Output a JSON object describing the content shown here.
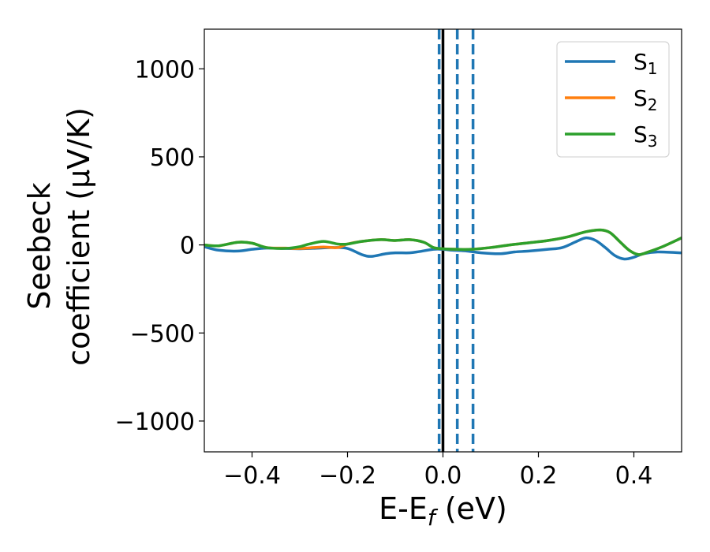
{
  "chart_data": {
    "type": "line",
    "xlabel": "E-E_f (eV)",
    "xlabel_parts": [
      "E-E",
      "f",
      " (eV)"
    ],
    "ylabel_lines": [
      "Seebeck",
      "coefficient  (μV/K)"
    ],
    "xlim": [
      -0.5,
      0.5
    ],
    "ylim": [
      -1175,
      1225
    ],
    "xticks": [
      -0.4,
      -0.2,
      0.0,
      0.2,
      0.4
    ],
    "xtick_labels": [
      "−0.4",
      "−0.2",
      "0.0",
      "0.2",
      "0.4"
    ],
    "yticks": [
      -1000,
      -500,
      0,
      500,
      1000
    ],
    "ytick_labels": [
      "−1000",
      "−500",
      "0",
      "500",
      "1000"
    ],
    "legend_position": "top-right",
    "series": [
      {
        "name": "S1",
        "name_base": "S",
        "name_sub": "1",
        "color": "#1f77b4",
        "x": [
          -0.5,
          -0.47,
          -0.43,
          -0.4,
          -0.37,
          -0.33,
          -0.3,
          -0.26,
          -0.23,
          -0.2,
          -0.17,
          -0.15,
          -0.12,
          -0.1,
          -0.07,
          -0.05,
          -0.02,
          0.0,
          0.02,
          0.05,
          0.08,
          0.12,
          0.15,
          0.18,
          0.22,
          0.25,
          0.28,
          0.3,
          0.32,
          0.34,
          0.36,
          0.38,
          0.4,
          0.42,
          0.45,
          0.5
        ],
        "y": [
          -10,
          -30,
          -35,
          -25,
          -18,
          -20,
          -22,
          -18,
          -15,
          -20,
          -55,
          -65,
          -50,
          -45,
          -45,
          -38,
          -25,
          -25,
          -30,
          -35,
          -45,
          -50,
          -40,
          -35,
          -25,
          -15,
          20,
          40,
          25,
          -15,
          -60,
          -80,
          -70,
          -50,
          -40,
          -45
        ]
      },
      {
        "name": "S2",
        "name_base": "S",
        "name_sub": "2",
        "color": "#ff7f0e",
        "x": [
          -0.5,
          -0.47,
          -0.43,
          -0.4,
          -0.37,
          -0.33,
          -0.3,
          -0.27,
          -0.25,
          -0.22,
          -0.2,
          -0.17,
          -0.13,
          -0.1,
          -0.07,
          -0.04,
          -0.02,
          0.0,
          0.03,
          0.06,
          0.1,
          0.14,
          0.18,
          0.22,
          0.26,
          0.3,
          0.33,
          0.35,
          0.37,
          0.39,
          0.41,
          0.43,
          0.46,
          0.5
        ],
        "y": [
          0,
          -5,
          15,
          10,
          -15,
          -18,
          -20,
          -15,
          -12,
          -15,
          5,
          20,
          30,
          25,
          30,
          15,
          -15,
          -22,
          -25,
          -25,
          -15,
          0,
          12,
          25,
          45,
          75,
          85,
          70,
          20,
          -30,
          -55,
          -40,
          -10,
          40
        ]
      },
      {
        "name": "S3",
        "name_base": "S",
        "name_sub": "3",
        "color": "#2ca02c",
        "x": [
          -0.5,
          -0.47,
          -0.43,
          -0.4,
          -0.37,
          -0.33,
          -0.3,
          -0.28,
          -0.25,
          -0.22,
          -0.2,
          -0.17,
          -0.13,
          -0.1,
          -0.07,
          -0.04,
          -0.02,
          0.0,
          0.03,
          0.06,
          0.1,
          0.14,
          0.18,
          0.22,
          0.26,
          0.3,
          0.33,
          0.35,
          0.37,
          0.39,
          0.41,
          0.43,
          0.46,
          0.5
        ],
        "y": [
          0,
          -5,
          15,
          10,
          -15,
          -20,
          -10,
          5,
          20,
          5,
          5,
          20,
          30,
          25,
          30,
          15,
          -15,
          -22,
          -25,
          -25,
          -15,
          0,
          12,
          25,
          45,
          75,
          85,
          70,
          20,
          -30,
          -55,
          -40,
          -10,
          40
        ]
      }
    ],
    "vlines": [
      {
        "x": 0.0,
        "color": "#000000",
        "style": "solid"
      },
      {
        "x": -0.008,
        "color": "#1f77b4",
        "style": "dashed"
      },
      {
        "x": 0.03,
        "color": "#1f77b4",
        "style": "dashed"
      },
      {
        "x": 0.063,
        "color": "#1f77b4",
        "style": "dashed"
      }
    ]
  }
}
